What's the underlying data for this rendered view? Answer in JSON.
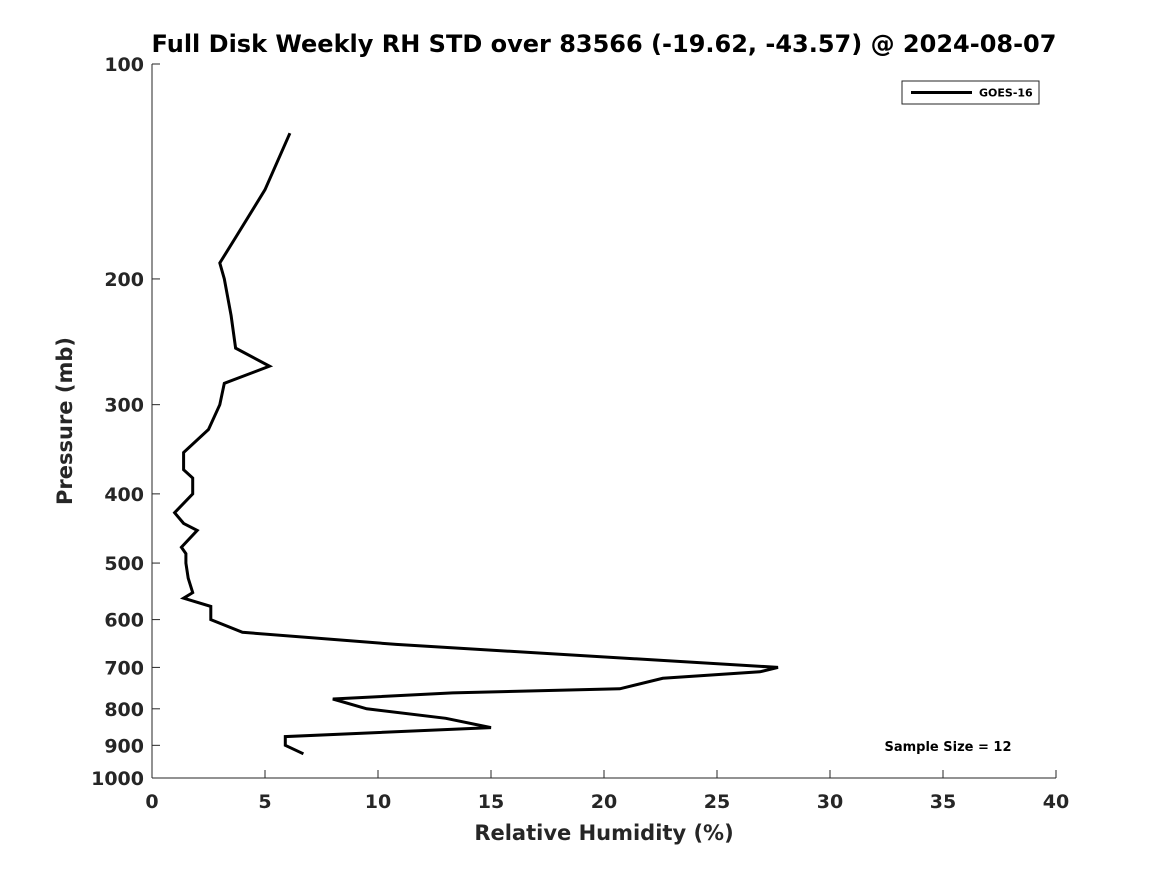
{
  "chart_data": {
    "type": "line",
    "title": "Full Disk Weekly RH STD over 83566 (-19.62, -43.57) @ 2024-08-07",
    "xlabel": "Relative Humidity (%)",
    "ylabel": "Pressure (mb)",
    "xlim": [
      0,
      40
    ],
    "ylim": [
      100,
      1000
    ],
    "y_scale": "log",
    "y_reversed": true,
    "x_ticks": [
      "0",
      "5",
      "10",
      "15",
      "20",
      "25",
      "30",
      "35",
      "40"
    ],
    "y_ticks": [
      "100",
      "200",
      "300",
      "400",
      "500",
      "600",
      "700",
      "800",
      "900",
      "1000"
    ],
    "grid": false,
    "legend_position": "top-right",
    "series": [
      {
        "name": "GOES-16",
        "color": "#000000",
        "points": [
          {
            "x": 6.1,
            "y": 125
          },
          {
            "x": 5.0,
            "y": 150
          },
          {
            "x": 3.7,
            "y": 175
          },
          {
            "x": 3.0,
            "y": 190
          },
          {
            "x": 3.2,
            "y": 200
          },
          {
            "x": 3.5,
            "y": 225
          },
          {
            "x": 3.7,
            "y": 250
          },
          {
            "x": 5.2,
            "y": 265
          },
          {
            "x": 3.2,
            "y": 280
          },
          {
            "x": 3.0,
            "y": 300
          },
          {
            "x": 2.5,
            "y": 325
          },
          {
            "x": 1.4,
            "y": 350
          },
          {
            "x": 1.4,
            "y": 370
          },
          {
            "x": 1.8,
            "y": 380
          },
          {
            "x": 1.8,
            "y": 400
          },
          {
            "x": 1.0,
            "y": 425
          },
          {
            "x": 1.4,
            "y": 440
          },
          {
            "x": 2.0,
            "y": 450
          },
          {
            "x": 1.3,
            "y": 475
          },
          {
            "x": 1.5,
            "y": 485
          },
          {
            "x": 1.5,
            "y": 500
          },
          {
            "x": 1.6,
            "y": 525
          },
          {
            "x": 1.8,
            "y": 550
          },
          {
            "x": 1.4,
            "y": 560
          },
          {
            "x": 2.6,
            "y": 575
          },
          {
            "x": 2.6,
            "y": 600
          },
          {
            "x": 4.0,
            "y": 625
          },
          {
            "x": 10.8,
            "y": 650
          },
          {
            "x": 27.7,
            "y": 700
          },
          {
            "x": 26.9,
            "y": 710
          },
          {
            "x": 22.6,
            "y": 725
          },
          {
            "x": 20.7,
            "y": 750
          },
          {
            "x": 13.3,
            "y": 760
          },
          {
            "x": 8.0,
            "y": 775
          },
          {
            "x": 9.5,
            "y": 800
          },
          {
            "x": 13.0,
            "y": 825
          },
          {
            "x": 15.0,
            "y": 850
          },
          {
            "x": 5.9,
            "y": 875
          },
          {
            "x": 5.9,
            "y": 900
          },
          {
            "x": 6.7,
            "y": 925
          }
        ]
      }
    ],
    "annotations": [
      "Sample Size = 12"
    ]
  }
}
